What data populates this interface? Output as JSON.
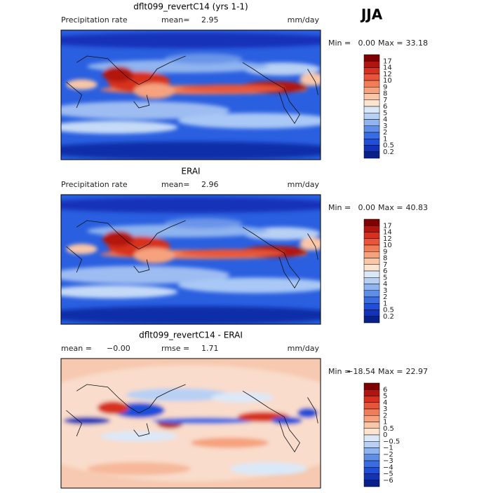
{
  "season": "JJA",
  "panels": [
    {
      "title": "dflt099_revertC14 (yrs 1-1)",
      "header_left": [
        "Precipitation rate"
      ],
      "header_center": [
        "mean=",
        "2.95"
      ],
      "units": "mm/day",
      "min_label": "Min =",
      "min": "0.00",
      "max_label": "Max =",
      "max": "33.18",
      "colorbar": [
        "17",
        "14",
        "12",
        "10",
        "9",
        "8",
        "7",
        "6",
        "5",
        "4",
        "3",
        "2",
        "1",
        "0.5",
        "0.2"
      ]
    },
    {
      "title": "ERAI",
      "header_left": [
        "Precipitation rate"
      ],
      "header_center": [
        "mean=",
        "2.96"
      ],
      "units": "mm/day",
      "min_label": "Min =",
      "min": "0.00",
      "max_label": "Max =",
      "max": "40.83",
      "colorbar": [
        "17",
        "14",
        "12",
        "10",
        "9",
        "8",
        "7",
        "6",
        "5",
        "4",
        "3",
        "2",
        "1",
        "0.5",
        "0.2"
      ]
    },
    {
      "title": "dflt099_revertC14 - ERAI",
      "header_left": [
        "mean =",
        "−0.00"
      ],
      "header_center": [
        "rmse =",
        "1.71"
      ],
      "units": "mm/day",
      "min_label": "Min =",
      "min": "−18.54",
      "max_label": "Max =",
      "max": "22.97",
      "colorbar": [
        "6",
        "5",
        "4",
        "3",
        "2",
        "1",
        "0.5",
        "0",
        "−0.5",
        "−1",
        "−2",
        "−3",
        "−4",
        "−5",
        "−6"
      ]
    }
  ]
}
